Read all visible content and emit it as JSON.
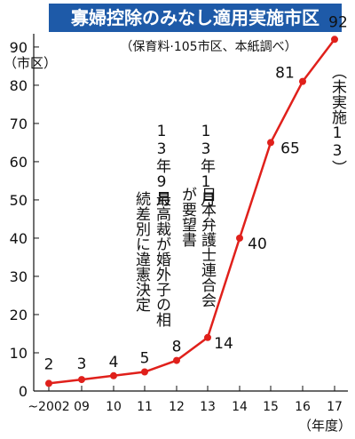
{
  "chart_data": {
    "type": "line",
    "title": "寡婦控除のみなし適用実施市区",
    "subtitle": "（保育料·105市区、本紙調べ）",
    "y_label": "（市区）",
    "x_label": "（年度）",
    "categories": [
      "~2002",
      "09",
      "10",
      "11",
      "12",
      "13",
      "14",
      "15",
      "16",
      "17"
    ],
    "values": [
      2,
      3,
      4,
      5,
      8,
      14,
      40,
      65,
      81,
      92
    ],
    "color": "#e0201b",
    "ylim": [
      0,
      93
    ],
    "yticks": [
      0,
      10,
      20,
      30,
      40,
      50,
      60,
      70,
      80,
      90
    ],
    "annotations": [
      [
        "13年9月",
        "最高裁が婚外子の相",
        "続差別に違憲決定"
      ],
      [
        "13年1月",
        "日本弁護士連合会",
        "が要望書"
      ]
    ],
    "note": "（未実施13）"
  }
}
